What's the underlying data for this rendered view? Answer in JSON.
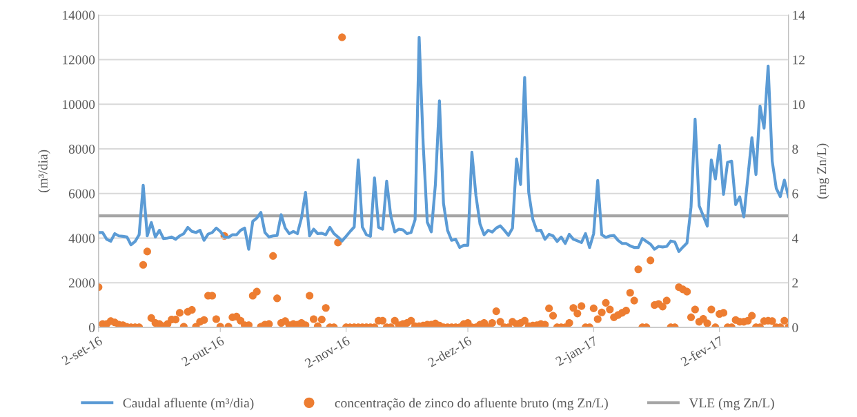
{
  "chart_data": {
    "type": "line",
    "ylabel": "(m³/dia)",
    "y2label": "(mg Zn/L)",
    "x": [
      "2016-09-02",
      "2016-09-03",
      "2016-09-04",
      "2016-09-05",
      "2016-09-06",
      "2016-09-07",
      "2016-09-08",
      "2016-09-09",
      "2016-09-10",
      "2016-09-11",
      "2016-09-12",
      "2016-09-13",
      "2016-09-14",
      "2016-09-15",
      "2016-09-16",
      "2016-09-17",
      "2016-09-18",
      "2016-09-19",
      "2016-09-20",
      "2016-09-21",
      "2016-09-22",
      "2016-09-23",
      "2016-09-24",
      "2016-09-25",
      "2016-09-26",
      "2016-09-27",
      "2016-09-28",
      "2016-09-29",
      "2016-09-30",
      "2016-10-01",
      "2016-10-02",
      "2016-10-03",
      "2016-10-04",
      "2016-10-05",
      "2016-10-06",
      "2016-10-07",
      "2016-10-08",
      "2016-10-09",
      "2016-10-10",
      "2016-10-11",
      "2016-10-12",
      "2016-10-13",
      "2016-10-14",
      "2016-10-15",
      "2016-10-16",
      "2016-10-17",
      "2016-10-18",
      "2016-10-19",
      "2016-10-20",
      "2016-10-21",
      "2016-10-22",
      "2016-10-23",
      "2016-10-24",
      "2016-10-25",
      "2016-10-26",
      "2016-10-27",
      "2016-10-28",
      "2016-10-29",
      "2016-10-30",
      "2016-10-31",
      "2016-11-01",
      "2016-11-02",
      "2016-11-03",
      "2016-11-04",
      "2016-11-05",
      "2016-11-06",
      "2016-11-07",
      "2016-11-08",
      "2016-11-09",
      "2016-11-10",
      "2016-11-11",
      "2016-11-12",
      "2016-11-13",
      "2016-11-14",
      "2016-11-15",
      "2016-11-16",
      "2016-11-17",
      "2016-11-18",
      "2016-11-19",
      "2016-11-20",
      "2016-11-21",
      "2016-11-22",
      "2016-11-23",
      "2016-11-24",
      "2016-11-25",
      "2016-11-26",
      "2016-11-27",
      "2016-11-28",
      "2016-11-29",
      "2016-11-30",
      "2016-12-01",
      "2016-12-02",
      "2016-12-03",
      "2016-12-04",
      "2016-12-05",
      "2016-12-06",
      "2016-12-07",
      "2016-12-08",
      "2016-12-09",
      "2016-12-10",
      "2016-12-11",
      "2016-12-12",
      "2016-12-13",
      "2016-12-14",
      "2016-12-15",
      "2016-12-16",
      "2016-12-17",
      "2016-12-18",
      "2016-12-19",
      "2016-12-20",
      "2016-12-21",
      "2016-12-22",
      "2016-12-23",
      "2016-12-24",
      "2016-12-25",
      "2016-12-26",
      "2016-12-27",
      "2016-12-28",
      "2016-12-29",
      "2016-12-30",
      "2016-12-31",
      "2017-01-01",
      "2017-01-02",
      "2017-01-03",
      "2017-01-04",
      "2017-01-05",
      "2017-01-06",
      "2017-01-07",
      "2017-01-08",
      "2017-01-09",
      "2017-01-10",
      "2017-01-11",
      "2017-01-12",
      "2017-01-13",
      "2017-01-14",
      "2017-01-15",
      "2017-01-16",
      "2017-01-17",
      "2017-01-18",
      "2017-01-19",
      "2017-01-20",
      "2017-01-21",
      "2017-01-22",
      "2017-01-23",
      "2017-01-24",
      "2017-01-25",
      "2017-01-26",
      "2017-01-27",
      "2017-01-28",
      "2017-01-29",
      "2017-01-30",
      "2017-01-31",
      "2017-02-01",
      "2017-02-02",
      "2017-02-03",
      "2017-02-04",
      "2017-02-05",
      "2017-02-06",
      "2017-02-07",
      "2017-02-08",
      "2017-02-09",
      "2017-02-10",
      "2017-02-11",
      "2017-02-12",
      "2017-02-13",
      "2017-02-14",
      "2017-02-15",
      "2017-02-16",
      "2017-02-17",
      "2017-02-18",
      "2017-02-19"
    ],
    "series": [
      {
        "name": "Caudal afluente (m³/dia)",
        "axis": "y",
        "color": "#5b9bd5",
        "values": [
          4250,
          4250,
          3950,
          3860,
          4200,
          4100,
          4080,
          4050,
          3700,
          3850,
          4150,
          6370,
          4100,
          4700,
          4050,
          4350,
          3980,
          4000,
          4050,
          3950,
          4100,
          4200,
          4480,
          4300,
          4250,
          4350,
          3900,
          4180,
          4250,
          4450,
          4300,
          4050,
          4030,
          4150,
          4150,
          4350,
          4450,
          3500,
          4750,
          4900,
          5150,
          4250,
          4050,
          4100,
          4120,
          5050,
          4450,
          4200,
          4300,
          4200,
          4900,
          6050,
          4100,
          4400,
          4200,
          4220,
          4150,
          4480,
          4200,
          4050,
          3870,
          4080,
          4300,
          4500,
          7500,
          4500,
          4150,
          4080,
          6700,
          4480,
          4400,
          6550,
          5000,
          4280,
          4400,
          4370,
          4200,
          4250,
          4830,
          13000,
          8200,
          4720,
          4280,
          6400,
          10150,
          5560,
          4350,
          3900,
          3950,
          3580,
          3680,
          3680,
          7850,
          5900,
          4630,
          4150,
          4350,
          4270,
          4450,
          4550,
          4350,
          4120,
          4450,
          7550,
          6400,
          11200,
          6050,
          4850,
          4330,
          4350,
          3950,
          4170,
          4100,
          3850,
          4050,
          3760,
          4170,
          3950,
          3880,
          3800,
          4200,
          3580,
          4200,
          6580,
          4150,
          4030,
          4100,
          4120,
          3900,
          3760,
          3760,
          3650,
          3580,
          3580,
          3980,
          3850,
          3730,
          3500,
          3630,
          3600,
          3630,
          3870,
          3830,
          3400,
          3600,
          3780,
          5400,
          9330,
          5450,
          5000,
          4540,
          7500,
          6650,
          8150,
          5960,
          7400,
          7450,
          5500,
          5850,
          4950,
          6720,
          8500,
          6850,
          9920,
          8930,
          11710,
          7450,
          6230,
          5860,
          6600,
          5860
        ]
      },
      {
        "name": "concentração de zinco do afluente bruto (mg Zn/L)",
        "type": "scatter",
        "axis": "y2",
        "marker": "circle",
        "color": "#ed7d31",
        "values": [
          1.8,
          0.15,
          0.15,
          0.28,
          0.22,
          0.12,
          0.1,
          0.02,
          0,
          0,
          0,
          2.8,
          3.4,
          0.42,
          0.2,
          0.15,
          0.05,
          0.15,
          0.35,
          0.35,
          0.65,
          0.03,
          0.7,
          0.78,
          0.03,
          0.25,
          0.33,
          1.42,
          1.42,
          0.37,
          0.03,
          4.1,
          0.03,
          0.45,
          0.48,
          0.3,
          0.1,
          0.1,
          1.42,
          1.6,
          0.03,
          0.12,
          0.15,
          3.2,
          1.3,
          0.2,
          0.28,
          0.1,
          0.15,
          0.12,
          0.2,
          0.1,
          1.42,
          0.37,
          0.05,
          0.35,
          0.87,
          0,
          0,
          3.8,
          13,
          0,
          0,
          0,
          0,
          0,
          0,
          0,
          0,
          0.3,
          0.3,
          0,
          0,
          0.3,
          0.1,
          0.15,
          0.2,
          0.3,
          0.05,
          0.05,
          0.08,
          0.12,
          0.12,
          0.17,
          0.08,
          0,
          0,
          0,
          0,
          0,
          0.15,
          0.2,
          0,
          0,
          0.12,
          0.2,
          0,
          0.2,
          0.72,
          0.25,
          0,
          0,
          0.25,
          0.15,
          0.2,
          0.3,
          0.05,
          0.08,
          0.1,
          0.15,
          0.12,
          0.85,
          0.52,
          0,
          0,
          0,
          0.2,
          0.87,
          0.62,
          0.95,
          0,
          0,
          0.85,
          0.37,
          0.67,
          1.1,
          0.8,
          0.45,
          0.55,
          0.65,
          0.75,
          1.55,
          1.2,
          2.6,
          0,
          0,
          3.0,
          1.0,
          1.05,
          0.93,
          1.2,
          0,
          0,
          1.8,
          1.7,
          1.6,
          0.45,
          0.8,
          0.25,
          0.38,
          0.18,
          0.8,
          0,
          0.6,
          0.65,
          0,
          0,
          0.33,
          0.25,
          0.25,
          0.3,
          0.52,
          0,
          0,
          0.28,
          0.3,
          0.28,
          0,
          0,
          0.3,
          0
        ]
      },
      {
        "name": "VLE (mg Zn/L)",
        "axis": "y2",
        "color": "#a5a5a5",
        "x": [
          "2016-09-02",
          "2017-02-19"
        ],
        "values": [
          5,
          5
        ]
      }
    ],
    "xlim": [
      "2016-09-02",
      "2017-02-19"
    ],
    "xticks": [
      {
        "value": "2016-09-02",
        "label": "2-set-16"
      },
      {
        "value": "2016-10-02",
        "label": "2-out-16"
      },
      {
        "value": "2016-11-02",
        "label": "2-nov-16"
      },
      {
        "value": "2016-12-02",
        "label": "2-dez-16"
      },
      {
        "value": "2017-01-02",
        "label": "2-jan-17"
      },
      {
        "value": "2017-02-02",
        "label": "2-fev-17"
      }
    ],
    "ylim": [
      0,
      14000
    ],
    "yticks": [
      0,
      2000,
      4000,
      6000,
      8000,
      10000,
      12000,
      14000
    ],
    "y2lim": [
      0,
      14
    ],
    "y2ticks": [
      0,
      2,
      4,
      6,
      8,
      10,
      12,
      14
    ],
    "grid": "y",
    "legend": "bottom",
    "line_style": "solid"
  }
}
